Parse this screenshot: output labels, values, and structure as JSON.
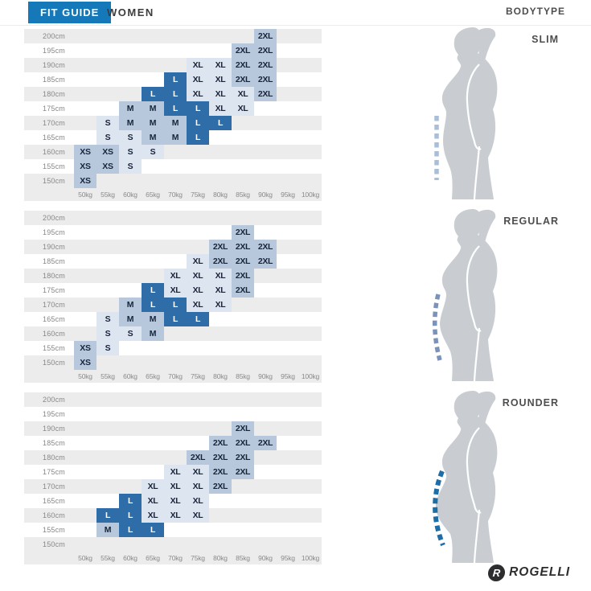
{
  "header": {
    "fit_guide": "FIT GUIDE",
    "gender": "WOMEN",
    "bodytype": "BODYTYPE"
  },
  "logo": {
    "brand": "ROGELLI"
  },
  "colors": {
    "header_blue": "#1578b8",
    "cell_dark": "#2e6da7",
    "cell_mid": "#b7c8dd",
    "cell_pale": "#dde5f1",
    "cell_text": "#18243a",
    "row_alt": "#ececec",
    "silhouette": "#c9cdd2",
    "dash_slim": "#a9bfd9",
    "dash_regular": "#7b93ba",
    "dash_rounder": "#1d6ea7"
  },
  "chart_data": {
    "type": "heatmap",
    "title": "FIT GUIDE WOMEN by bodytype",
    "x_categories": [
      "50kg",
      "55kg",
      "60kg",
      "65kg",
      "70kg",
      "75kg",
      "80kg",
      "85kg",
      "90kg",
      "95kg",
      "100kg"
    ],
    "y_categories": [
      "200cm",
      "195cm",
      "190cm",
      "185cm",
      "180cm",
      "175cm",
      "170cm",
      "165cm",
      "160cm",
      "155cm",
      "150cm"
    ],
    "legend": {
      "XS": "mid",
      "S": "pale",
      "M": "mid",
      "L": "dark",
      "XL": "pale",
      "2XL": "mid"
    },
    "charts": [
      {
        "bodytype": "SLIM",
        "cells": {
          "200cm": {
            "90kg": "2XL"
          },
          "195cm": {
            "85kg": "2XL",
            "90kg": "2XL"
          },
          "190cm": {
            "75kg": "XL",
            "80kg": "XL",
            "85kg": "2XL",
            "90kg": "2XL"
          },
          "185cm": {
            "70kg": "L",
            "75kg": "XL",
            "80kg": "XL",
            "85kg": "2XL",
            "90kg": "2XL"
          },
          "180cm": {
            "65kg": "L",
            "70kg": "L",
            "75kg": "XL",
            "80kg": "XL",
            "85kg": "XL",
            "90kg": "2XL"
          },
          "175cm": {
            "60kg": "M",
            "65kg": "M",
            "70kg": "L",
            "75kg": "L",
            "80kg": "XL",
            "85kg": "XL"
          },
          "170cm": {
            "55kg": "S",
            "60kg": "M",
            "65kg": "M",
            "70kg": "M",
            "75kg": "L",
            "80kg": "L"
          },
          "165cm": {
            "55kg": "S",
            "60kg": "S",
            "65kg": "M",
            "70kg": "M",
            "75kg": "L"
          },
          "160cm": {
            "50kg": "XS",
            "55kg": "XS",
            "60kg": "S",
            "65kg": "S"
          },
          "155cm": {
            "50kg": "XS",
            "55kg": "XS",
            "60kg": "S"
          },
          "150cm": {
            "50kg": "XS"
          }
        }
      },
      {
        "bodytype": "REGULAR",
        "cells": {
          "195cm": {
            "85kg": "2XL"
          },
          "190cm": {
            "80kg": "2XL",
            "85kg": "2XL",
            "90kg": "2XL"
          },
          "185cm": {
            "75kg": "XL",
            "80kg": "2XL",
            "85kg": "2XL",
            "90kg": "2XL"
          },
          "180cm": {
            "70kg": "XL",
            "75kg": "XL",
            "80kg": "XL",
            "85kg": "2XL"
          },
          "175cm": {
            "65kg": "L",
            "70kg": "XL",
            "75kg": "XL",
            "80kg": "XL",
            "85kg": "2XL"
          },
          "170cm": {
            "60kg": "M",
            "65kg": "L",
            "70kg": "L",
            "75kg": "XL",
            "80kg": "XL"
          },
          "165cm": {
            "55kg": "S",
            "60kg": "M",
            "65kg": "M",
            "70kg": "L",
            "75kg": "L"
          },
          "160cm": {
            "55kg": "S",
            "60kg": "S",
            "65kg": "M"
          },
          "155cm": {
            "50kg": "XS",
            "55kg": "S"
          },
          "150cm": {
            "50kg": "XS"
          }
        }
      },
      {
        "bodytype": "ROUNDER",
        "cells": {
          "190cm": {
            "85kg": "2XL"
          },
          "185cm": {
            "80kg": "2XL",
            "85kg": "2XL",
            "90kg": "2XL"
          },
          "180cm": {
            "75kg": "2XL",
            "80kg": "2XL",
            "85kg": "2XL"
          },
          "175cm": {
            "70kg": "XL",
            "75kg": "XL",
            "80kg": "2XL",
            "85kg": "2XL"
          },
          "170cm": {
            "65kg": "XL",
            "70kg": "XL",
            "75kg": "XL",
            "80kg": "2XL"
          },
          "165cm": {
            "60kg": "L",
            "65kg": "XL",
            "70kg": "XL",
            "75kg": "XL"
          },
          "160cm": {
            "55kg": "L",
            "60kg": "L",
            "65kg": "XL",
            "70kg": "XL",
            "75kg": "XL"
          },
          "155cm": {
            "55kg": "M",
            "60kg": "L",
            "65kg": "L"
          }
        }
      }
    ]
  }
}
